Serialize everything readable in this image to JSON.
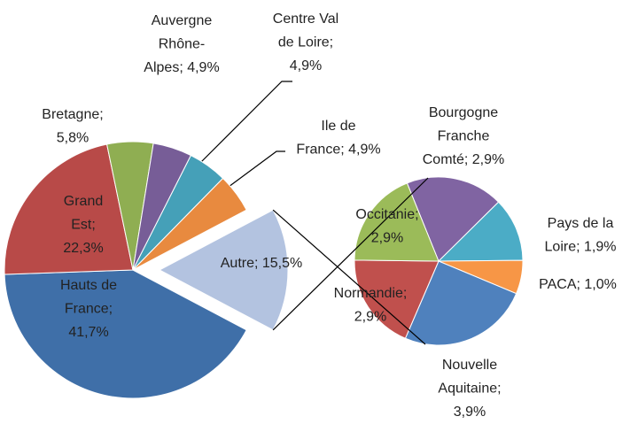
{
  "chart_data": {
    "type": "pie-of-pie",
    "series": [
      {
        "labels": [
          "Hauts de France; 41,7%",
          "Grand Est; 22,3%",
          "Bretagne; 5,8%",
          "Auvergne Rhône-Alpes; 4,9%",
          "Centre Val de Loire; 4,9%",
          "Ile de France; 4,9%",
          "Autre; 15,5%"
        ],
        "values": [
          41.7,
          22.3,
          5.8,
          4.9,
          4.9,
          4.9,
          15.5
        ],
        "colors": [
          "#3f6fa8",
          "#b84a48",
          "#8fae52",
          "#775d97",
          "#45a0b8",
          "#e88a3f",
          "#b3c3e0"
        ]
      },
      {
        "labels": [
          "Bourgogne Franche Comté; 2,9%",
          "Pays de la Loire; 1,9%",
          "PACA; 1,0%",
          "Nouvelle Aquitaine; 3,9%",
          "Normandie; 2,9%",
          "Occitanie; 2,9%"
        ],
        "values": [
          2.9,
          1.9,
          1.0,
          3.9,
          2.9,
          2.9
        ],
        "colors": [
          "#8064a2",
          "#4bacc6",
          "#f79646",
          "#4f81bd",
          "#c0504d",
          "#9bbb59"
        ]
      }
    ]
  }
}
